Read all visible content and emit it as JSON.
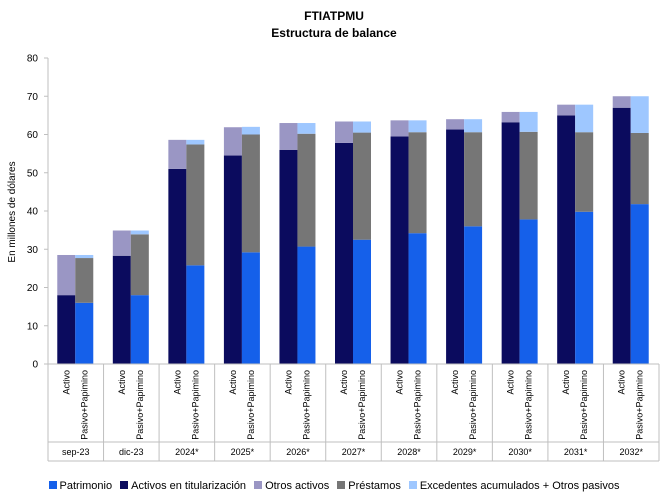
{
  "chart_data": {
    "type": "bar",
    "stacked": true,
    "title": "FTIATPMU",
    "subtitle": "Estructura de balance",
    "ylabel": "En millones de dólares",
    "xlabel": "",
    "ylim": [
      0,
      80
    ],
    "yticks": [
      0,
      10,
      20,
      30,
      40,
      50,
      60,
      70,
      80
    ],
    "grid": false,
    "legend_position": "bottom",
    "groups": [
      "sep-23",
      "dic-23",
      "2024*",
      "2025*",
      "2026*",
      "2027*",
      "2028*",
      "2029*",
      "2030*",
      "2031*",
      "2032*"
    ],
    "bar_labels": [
      "Activo",
      "Pasivo+Papimino"
    ],
    "activo": {
      "series": [
        {
          "name": "Activos en titularización",
          "color": "#0b0b5e",
          "values": [
            18,
            28.3,
            51,
            54.5,
            56,
            57.8,
            59.5,
            61.3,
            63.2,
            65,
            67
          ]
        },
        {
          "name": "Otros activos",
          "color": "#9a96c4",
          "values": [
            10.5,
            6.6,
            7.6,
            7.4,
            7.0,
            5.6,
            4.2,
            2.7,
            2.7,
            2.8,
            3.0
          ]
        }
      ]
    },
    "pasivo": {
      "series": [
        {
          "name": "Patrimonio",
          "color": "#1560ea",
          "values": [
            16,
            18,
            25.8,
            29.2,
            30.7,
            32.5,
            34.2,
            36,
            37.8,
            39.8,
            41.8
          ]
        },
        {
          "name": "Préstamos",
          "color": "#767676",
          "values": [
            11.7,
            15.9,
            31.6,
            30.8,
            29.5,
            28,
            26.4,
            24.6,
            22.9,
            20.8,
            18.6
          ]
        },
        {
          "name": "Excedentes acumulados + Otros pasivos",
          "color": "#9ec7ff",
          "values": [
            0.8,
            1.0,
            1.2,
            2.0,
            2.8,
            2.9,
            3.1,
            3.4,
            5.2,
            7.2,
            9.6
          ]
        }
      ]
    },
    "legend": [
      {
        "name": "Patrimonio",
        "color": "#1560ea"
      },
      {
        "name": "Activos en titularización",
        "color": "#0b0b5e"
      },
      {
        "name": "Otros activos",
        "color": "#9a96c4"
      },
      {
        "name": "Préstamos",
        "color": "#767676"
      },
      {
        "name": "Excedentes acumulados + Otros pasivos",
        "color": "#9ec7ff"
      }
    ]
  }
}
